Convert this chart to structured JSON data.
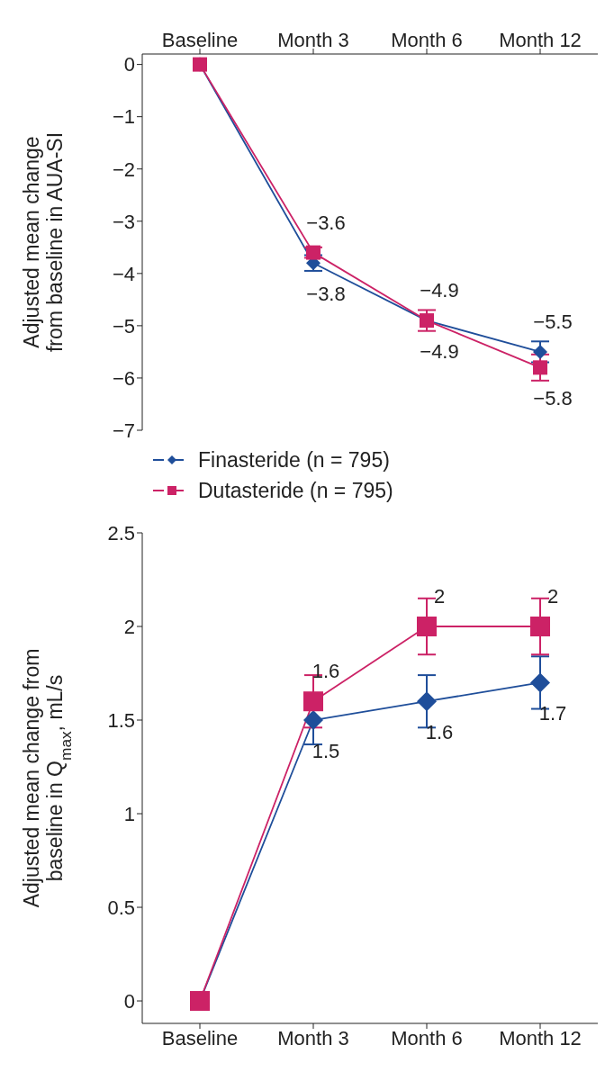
{
  "chart_data": [
    {
      "type": "line",
      "ylabel": "Adjusted mean change from baseline in AUA-SI",
      "categories": [
        "Baseline",
        "Month 3",
        "Month 6",
        "Month 12"
      ],
      "ylim": [
        -7,
        0.2
      ],
      "yticks": [
        {
          "value": -7,
          "label": "−7"
        },
        {
          "value": -6,
          "label": "−6"
        },
        {
          "value": -5,
          "label": "−5"
        },
        {
          "value": -4,
          "label": "−4"
        },
        {
          "value": -3,
          "label": "−3"
        },
        {
          "value": -2,
          "label": "−2"
        },
        {
          "value": -1,
          "label": "−1"
        },
        0
      ],
      "legend": "bottom",
      "line_style": "solid",
      "grid": false,
      "series": [
        {
          "name": "Finasteride (n = 795)",
          "color": "#1f4e9a",
          "marker": "diamond",
          "values": [
            0,
            -3.8,
            -4.9,
            -5.5
          ],
          "errors": [
            null,
            0.15,
            null,
            0.2
          ],
          "value_labels": [
            null,
            "−3.8",
            "−4.9",
            "−5.5"
          ]
        },
        {
          "name": "Dutasteride (n = 795)",
          "color": "#cc2266",
          "marker": "square",
          "values": [
            0,
            -3.6,
            -4.9,
            -5.8
          ],
          "errors": [
            null,
            0.1,
            0.2,
            0.25
          ],
          "value_labels": [
            null,
            "−3.6",
            "−4.9",
            "−5.8"
          ]
        }
      ]
    },
    {
      "type": "line",
      "ylabel": "Adjusted mean change from baseline in Q$_{max}$, mL/s",
      "categories": [
        "Baseline",
        "Month 3",
        "Month 6",
        "Month 12"
      ],
      "ylim": [
        -0.12,
        2.5
      ],
      "yticks": [
        0,
        0.5,
        1,
        1.5,
        2,
        2.5
      ],
      "legend": false,
      "line_style": "solid",
      "grid": false,
      "series": [
        {
          "color": "#1f4e9a",
          "marker": "diamond",
          "values": [
            0,
            1.5,
            1.6,
            1.7
          ],
          "errors": [
            null,
            0.13,
            0.14,
            0.14
          ],
          "value_labels": [
            null,
            "1.5",
            "1.6",
            "1.7"
          ]
        },
        {
          "color": "#cc2266",
          "marker": "square",
          "values": [
            0,
            1.6,
            2,
            2
          ],
          "errors": [
            null,
            0.14,
            0.15,
            0.15
          ],
          "value_labels": [
            null,
            "1.6",
            "2",
            "2"
          ]
        }
      ]
    }
  ]
}
